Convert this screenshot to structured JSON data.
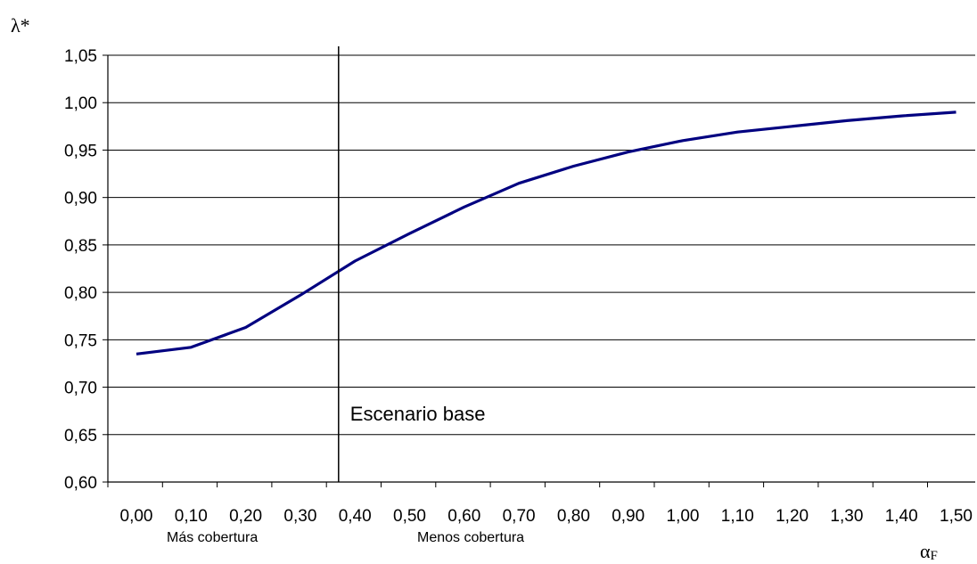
{
  "chart_data": {
    "type": "line",
    "ylabel": "λ*",
    "xlabel": "α",
    "xlabel_sub": "F",
    "ylim": [
      0.6,
      1.05
    ],
    "y_ticks": [
      "1,05",
      "1,00",
      "0,95",
      "0,90",
      "0,85",
      "0,80",
      "0,75",
      "0,70",
      "0,65",
      "0,60"
    ],
    "y_tick_values": [
      1.05,
      1.0,
      0.95,
      0.9,
      0.85,
      0.8,
      0.75,
      0.7,
      0.65,
      0.6
    ],
    "x_ticks": [
      "0,00",
      "0,10",
      "0,20",
      "0,30",
      "0,40",
      "0,50",
      "0,60",
      "0,70",
      "0,80",
      "0,90",
      "1,00",
      "1,10",
      "1,20",
      "1,30",
      "1,40",
      "1,50"
    ],
    "grid": "horizontal",
    "series": [
      {
        "color": "#000080",
        "x": [
          0.0,
          0.1,
          0.2,
          0.3,
          0.4,
          0.5,
          0.6,
          0.7,
          0.8,
          0.9,
          1.0,
          1.1,
          1.2,
          1.3,
          1.4,
          1.5
        ],
        "y": [
          0.735,
          0.742,
          0.763,
          0.797,
          0.833,
          0.862,
          0.89,
          0.915,
          0.933,
          0.948,
          0.96,
          0.969,
          0.975,
          0.981,
          0.986,
          0.99
        ]
      }
    ],
    "annotations": {
      "vline_x": 0.37,
      "vline_label": "Escenario base",
      "left_region_label": "Más cobertura",
      "right_region_label": "Menos cobertura"
    }
  }
}
